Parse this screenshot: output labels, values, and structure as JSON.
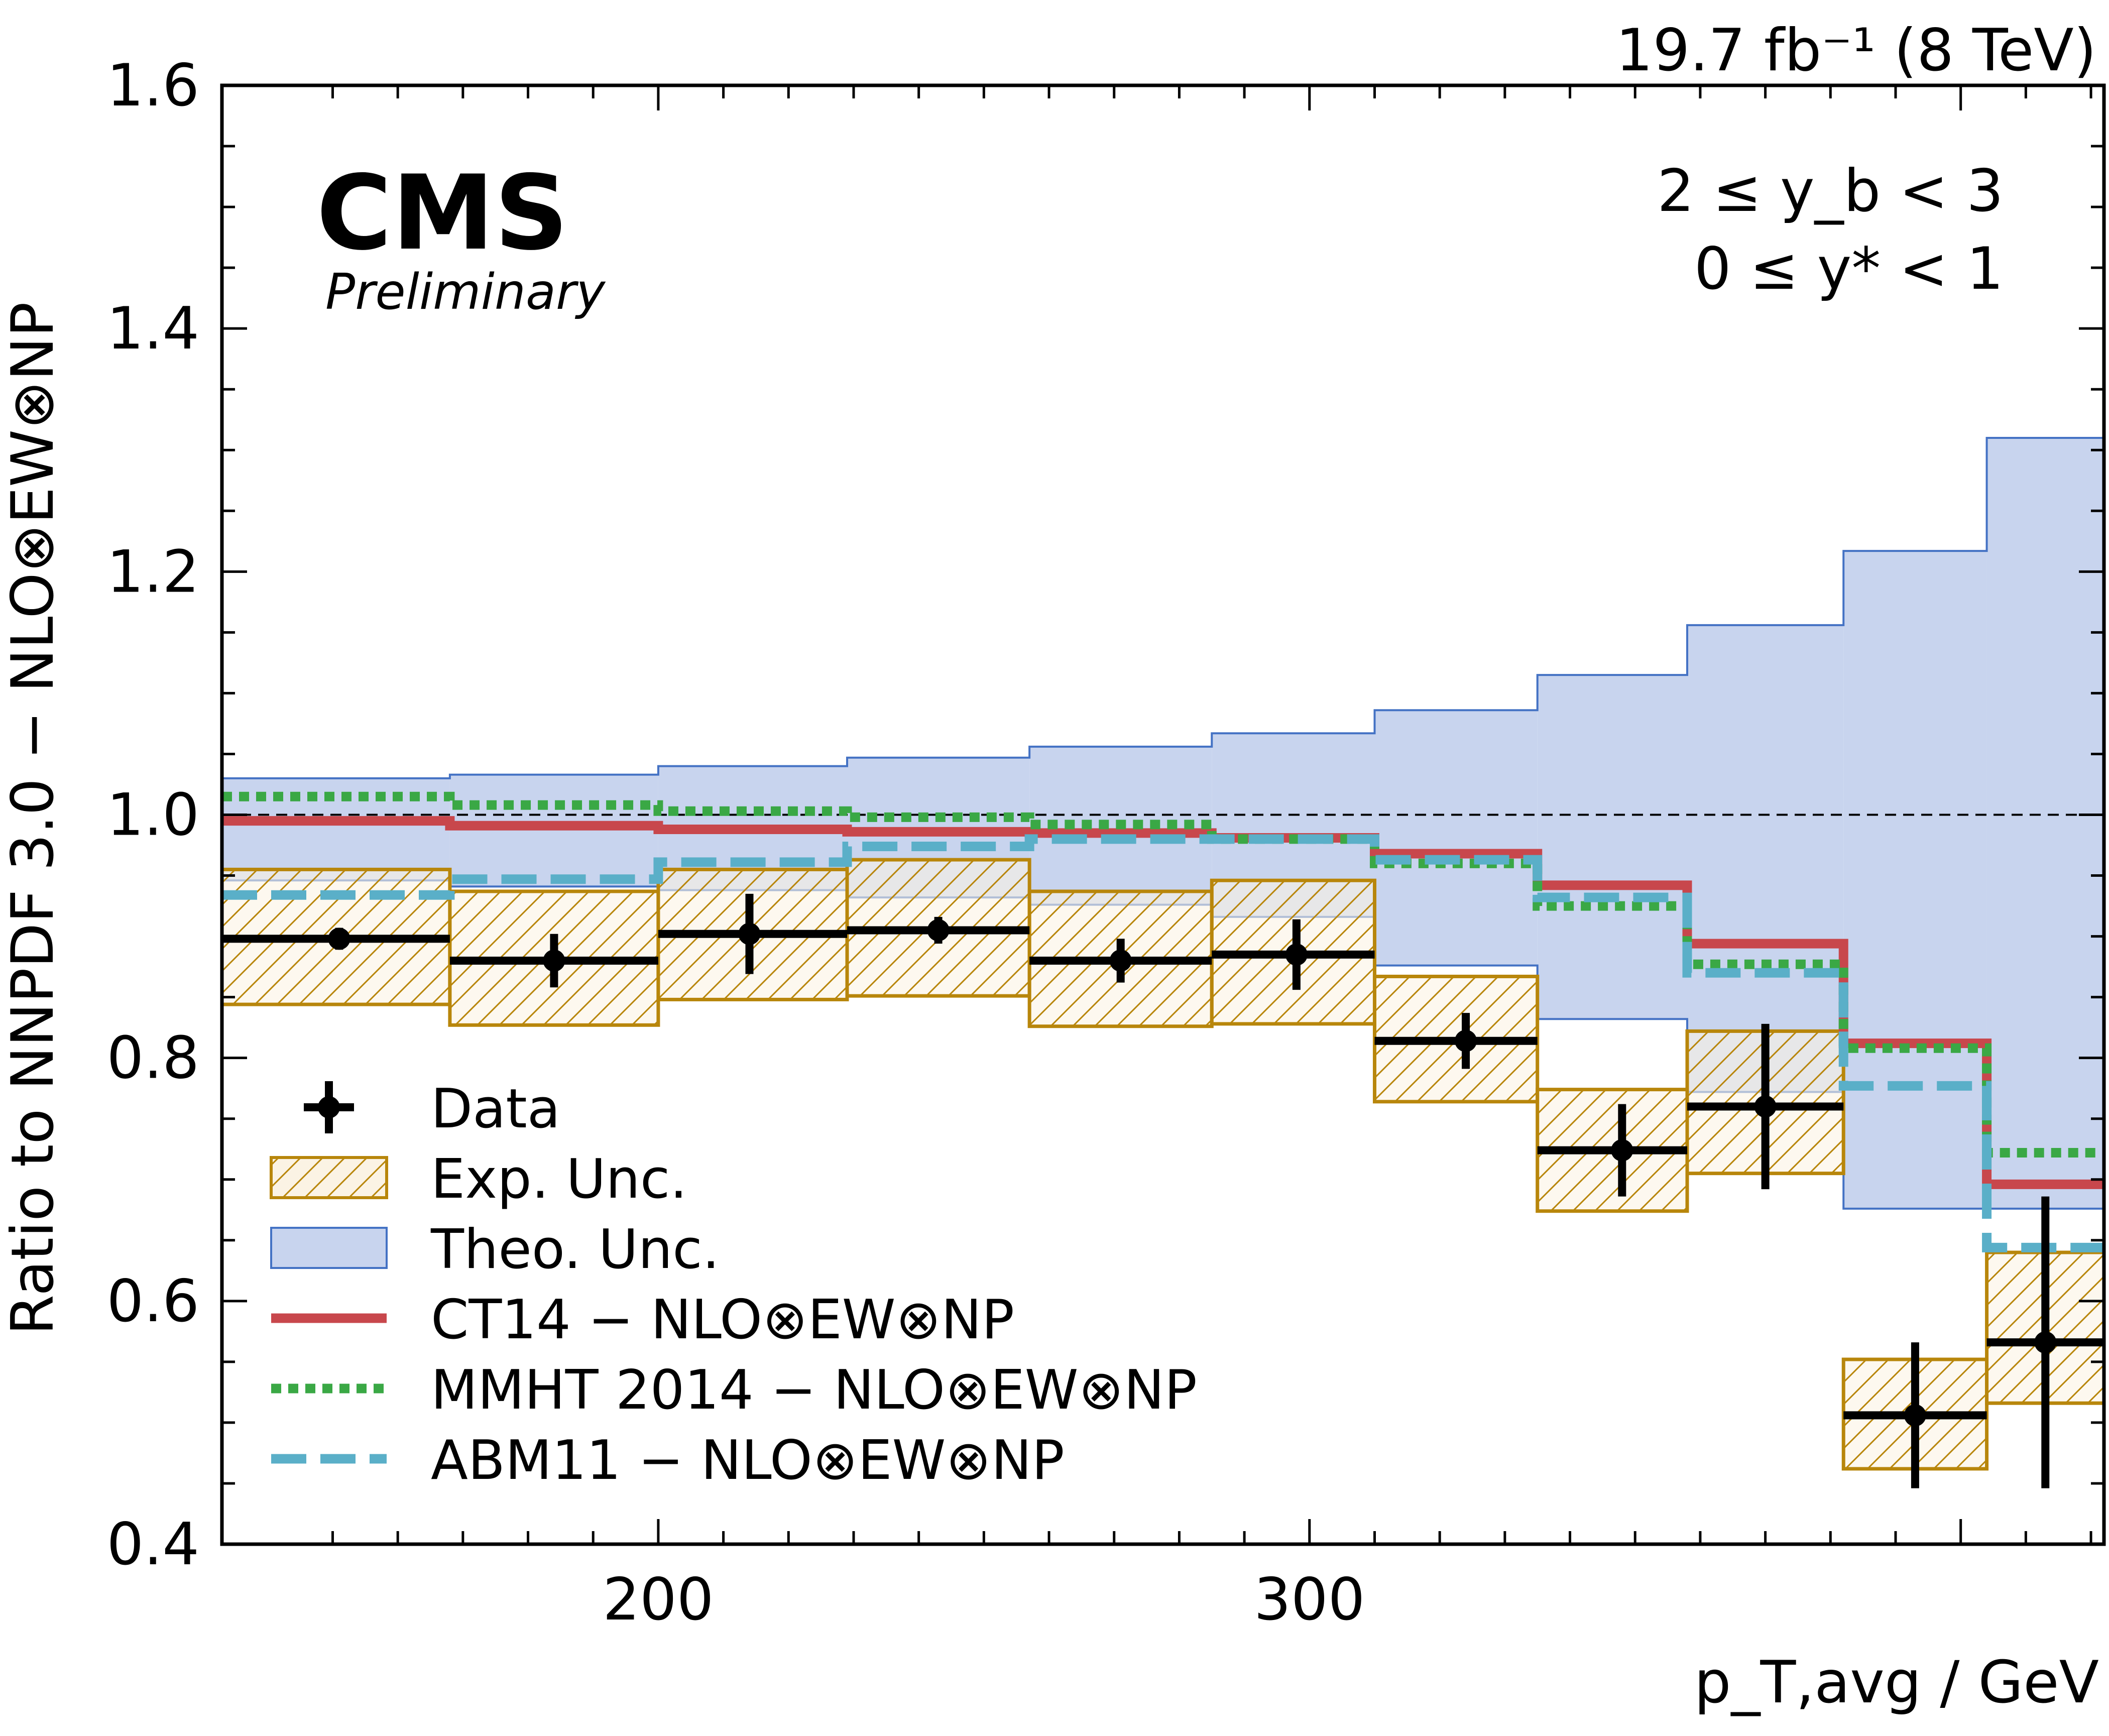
{
  "header": {
    "luminosity": "19.7 fb⁻¹ (8 TeV)",
    "experiment": "CMS",
    "status": "Preliminary",
    "region_line1": "2 ≤ y_b < 3",
    "region_line2": "0 ≤ y* < 1"
  },
  "chart_data": {
    "type": "line",
    "xlabel": "p_T,avg / GeV",
    "ylabel": "Ratio to NNPDF 3.0 − NLO⊗EW⊗NP",
    "xlim": [
      133,
      422
    ],
    "ylim": [
      0.4,
      1.6
    ],
    "yticks": [
      "0.4",
      "0.6",
      "0.8",
      "1.0",
      "1.2",
      "1.4",
      "1.6"
    ],
    "xticks": [
      "200",
      "300"
    ],
    "reference_line": 1.0,
    "bin_edges": [
      133,
      168,
      200,
      229,
      257,
      285,
      310,
      335,
      358,
      382,
      404,
      422
    ],
    "series": [
      {
        "name": "Data",
        "x": [
          151,
          184,
          214,
          243,
          271,
          298,
          324,
          348,
          370,
          393,
          413
        ],
        "y": [
          0.898,
          0.88,
          0.902,
          0.905,
          0.88,
          0.885,
          0.814,
          0.724,
          0.76,
          0.506,
          0.566
        ],
        "yerr_low": [
          0.009,
          0.022,
          0.033,
          0.011,
          0.018,
          0.029,
          0.023,
          0.038,
          0.068,
          0.06,
          0.12
        ],
        "yerr_high": [
          0.009,
          0.022,
          0.033,
          0.011,
          0.018,
          0.029,
          0.023,
          0.038,
          0.068,
          0.06,
          0.12
        ]
      },
      {
        "name": "Exp. Unc.",
        "low": [
          0.844,
          0.827,
          0.848,
          0.851,
          0.826,
          0.828,
          0.764,
          0.674,
          0.705,
          0.462,
          0.516
        ],
        "high": [
          0.955,
          0.937,
          0.955,
          0.963,
          0.937,
          0.946,
          0.867,
          0.774,
          0.822,
          0.552,
          0.64
        ]
      },
      {
        "name": "Theo. Unc.",
        "low": [
          0.946,
          0.941,
          0.938,
          0.932,
          0.926,
          0.916,
          0.876,
          0.832,
          0.772,
          0.676,
          0.676
        ],
        "high": [
          1.03,
          1.033,
          1.04,
          1.047,
          1.056,
          1.067,
          1.086,
          1.115,
          1.156,
          1.217,
          1.31
        ]
      },
      {
        "name": "CT14 − NLO⊗EW⊗NP",
        "values": [
          0.995,
          0.991,
          0.988,
          0.986,
          0.985,
          0.981,
          0.968,
          0.942,
          0.894,
          0.812,
          0.696
        ]
      },
      {
        "name": "MMHT 2014 − NLO⊗EW⊗NP",
        "values": [
          1.015,
          1.008,
          1.003,
          0.998,
          0.992,
          0.98,
          0.96,
          0.925,
          0.877,
          0.808,
          0.722
        ]
      },
      {
        "name": "ABM11 − NLO⊗EW⊗NP",
        "values": [
          0.934,
          0.947,
          0.961,
          0.974,
          0.98,
          0.98,
          0.963,
          0.932,
          0.87,
          0.777,
          0.644
        ]
      }
    ],
    "legend": {
      "placement": "lower-left",
      "entries": [
        "Data",
        "Exp. Unc.",
        "Theo. Unc.",
        "CT14 − NLO⊗EW⊗NP",
        "MMHT 2014 − NLO⊗EW⊗NP",
        "ABM11 − NLO⊗EW⊗NP"
      ]
    },
    "colors": {
      "data": "#000000",
      "exp_fill": "#fbf3e4",
      "exp_edge": "#b8860b",
      "theo_fill": "#c8d4ee",
      "theo_edge": "#4472c4",
      "ct14": "#c8474c",
      "mmht": "#3aa845",
      "abm11": "#5aafc8"
    }
  }
}
